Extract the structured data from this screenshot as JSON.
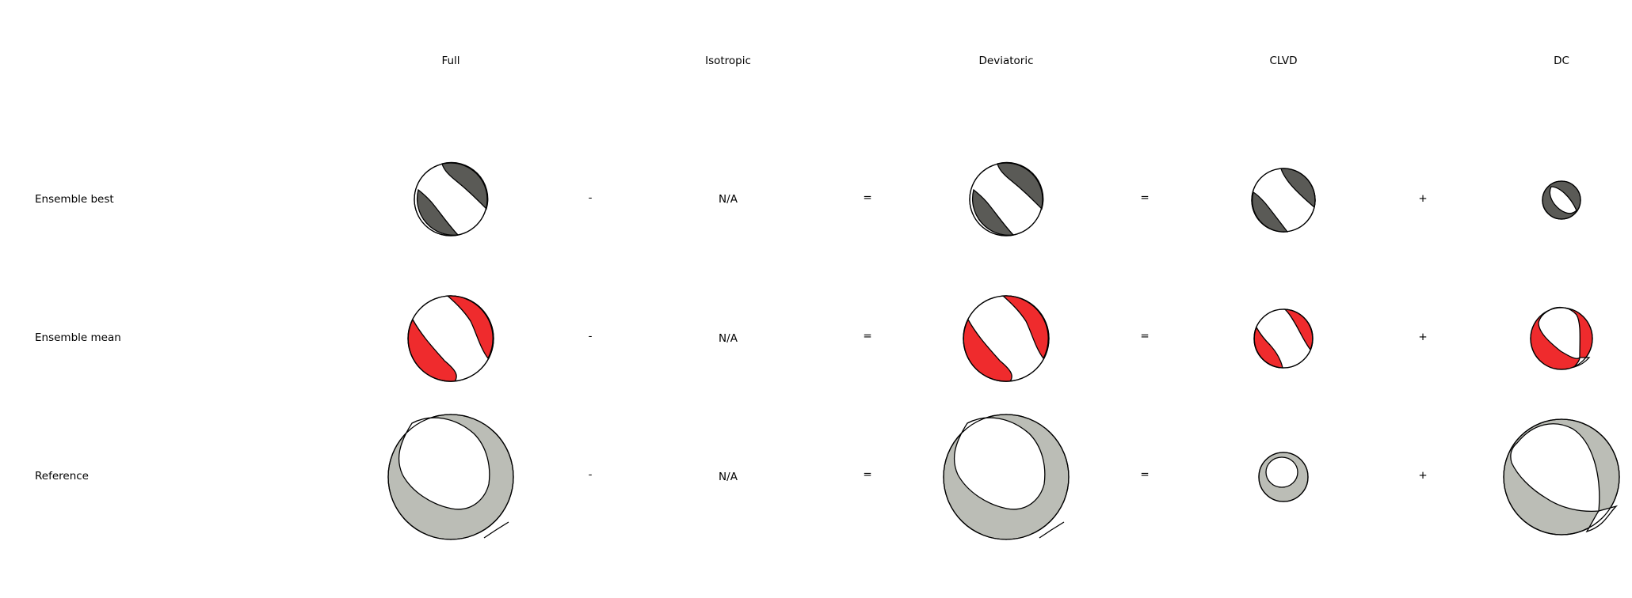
{
  "columns": {
    "full": "Full",
    "isotropic": "Isotropic",
    "deviatoric": "Deviatoric",
    "clvd": "CLVD",
    "dc": "DC"
  },
  "rows": [
    {
      "label": "Ensemble best",
      "isotropic": "N/A",
      "op1": "-",
      "op2": "=",
      "op3": "=",
      "op4": "+",
      "fill": "#5a5a56"
    },
    {
      "label": "Ensemble mean",
      "isotropic": "N/A",
      "op1": "-",
      "op2": "=",
      "op3": "=",
      "op4": "+",
      "fill": "#ef2b2d"
    },
    {
      "label": "Reference",
      "isotropic": "N/A",
      "op1": "-",
      "op2": "=",
      "op3": "=",
      "op4": "+",
      "fill": "#bbbdb6"
    }
  ]
}
